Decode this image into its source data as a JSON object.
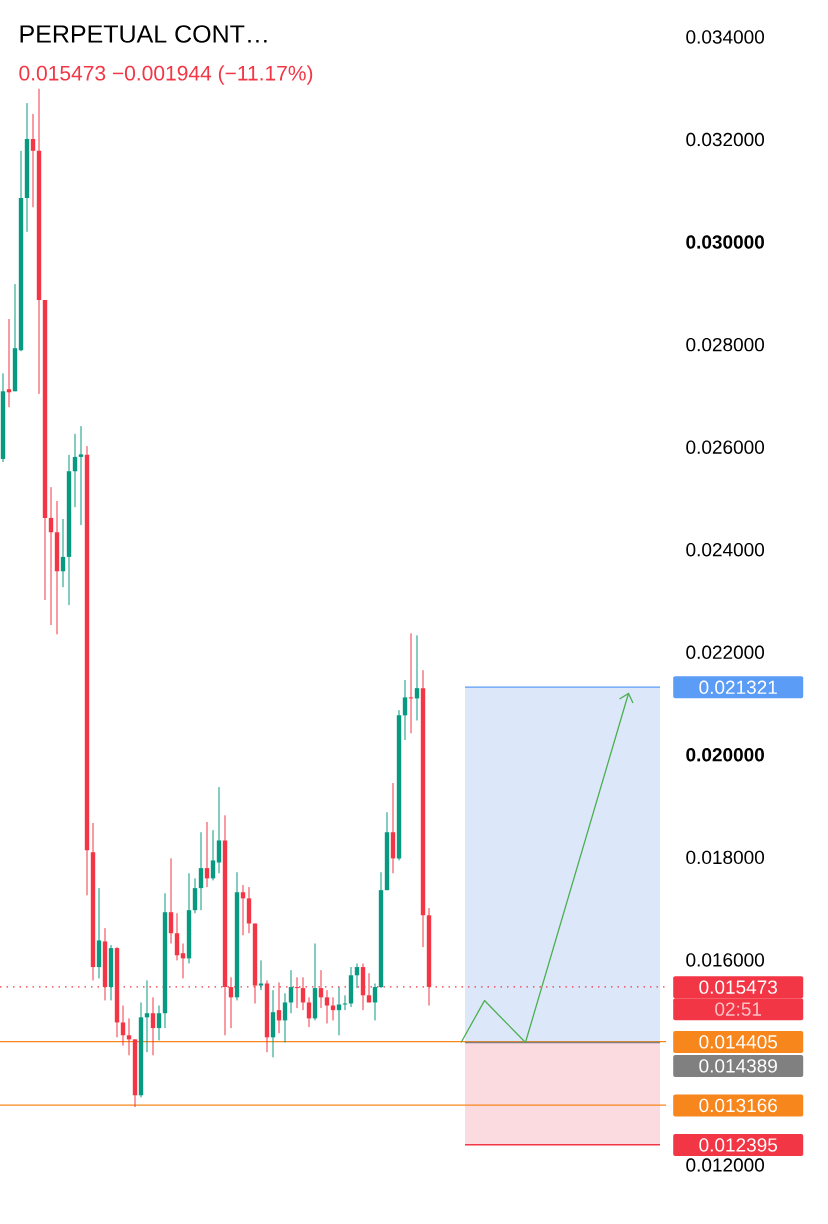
{
  "chart_data": {
    "type": "candlestick",
    "title": "PERPETUAL CONT…",
    "subtitle": "0.015473 −0.001944 (−11.17%)",
    "categories": [
      null,
      null,
      null,
      null,
      null,
      null,
      null,
      null,
      null,
      null,
      null,
      null,
      null,
      null,
      null,
      null,
      null,
      null,
      null,
      null,
      null,
      null,
      null,
      null,
      null,
      null,
      null,
      null,
      null,
      null,
      null,
      null,
      null,
      null,
      null,
      null,
      null,
      null,
      null,
      null,
      null,
      null,
      null,
      null,
      null,
      null,
      null,
      null,
      null,
      null,
      null,
      null,
      null,
      null,
      null,
      null,
      null,
      null,
      null,
      null,
      null,
      null,
      null,
      null,
      null,
      null,
      null,
      null,
      null,
      null,
      null,
      null,
      null,
      null,
      null,
      null,
      null,
      null,
      null,
      null,
      null,
      null,
      null,
      null,
      null,
      null,
      null,
      null,
      null,
      null,
      null,
      null,
      null,
      null,
      null,
      null,
      null,
      null,
      null,
      null,
      null,
      null,
      null,
      null,
      null,
      null,
      null,
      null,
      null,
      null,
      null
    ],
    "ohlc": [
      [
        0.02577,
        0.02744,
        0.02571,
        0.02709
      ],
      [
        0.02713,
        0.0285,
        0.02678,
        0.02707
      ],
      [
        0.02709,
        0.02918,
        0.02709,
        0.02793
      ],
      [
        0.02789,
        0.03178,
        0.02787,
        0.03086
      ],
      [
        0.03086,
        0.03271,
        0.0302,
        0.03201
      ],
      [
        0.03201,
        0.0325,
        0.03068,
        0.03178
      ],
      [
        0.03178,
        0.03299,
        0.02704,
        0.02887
      ],
      [
        0.02887,
        0.02887,
        0.02302,
        0.02462
      ],
      [
        0.02462,
        0.02522,
        0.02253,
        0.02434
      ],
      [
        0.02434,
        0.02495,
        0.02235,
        0.02358
      ],
      [
        0.02358,
        0.0246,
        0.02327,
        0.02386
      ],
      [
        0.02386,
        0.02585,
        0.02292,
        0.02553
      ],
      [
        0.02553,
        0.02626,
        0.02483,
        0.02581
      ],
      [
        0.02581,
        0.02641,
        0.02448,
        0.02586
      ],
      [
        0.02585,
        0.02602,
        0.01726,
        0.01814
      ],
      [
        0.0181,
        0.01867,
        0.0156,
        0.01586
      ],
      [
        0.01586,
        0.0174,
        0.01564,
        0.01638
      ],
      [
        0.01636,
        0.01662,
        0.01521,
        0.01547
      ],
      [
        0.01547,
        0.01629,
        0.01521,
        0.01623
      ],
      [
        0.01623,
        0.01625,
        0.01449,
        0.01478
      ],
      [
        0.01478,
        0.01511,
        0.01433,
        0.01453
      ],
      [
        0.01453,
        0.01486,
        0.01414,
        0.01445
      ],
      [
        0.01445,
        0.01445,
        0.01313,
        0.01336
      ],
      [
        0.01336,
        0.01517,
        0.01332,
        0.01488
      ],
      [
        0.01488,
        0.0156,
        0.0142,
        0.01496
      ],
      [
        0.01496,
        0.01527,
        0.01414,
        0.01467
      ],
      [
        0.01467,
        0.01511,
        0.01443,
        0.01496
      ],
      [
        0.01496,
        0.0173,
        0.01467,
        0.01693
      ],
      [
        0.01693,
        0.01798,
        0.01632,
        0.01652
      ],
      [
        0.01652,
        0.01691,
        0.01599,
        0.01609
      ],
      [
        0.01613,
        0.01632,
        0.01564,
        0.01603
      ],
      [
        0.01603,
        0.01769,
        0.01593,
        0.01697
      ],
      [
        0.01697,
        0.01759,
        0.01691,
        0.0174
      ],
      [
        0.0174,
        0.01849,
        0.01697,
        0.01779
      ],
      [
        0.01779,
        0.01869,
        0.01742,
        0.01759
      ],
      [
        0.01759,
        0.01853,
        0.01755,
        0.01794
      ],
      [
        0.0179,
        0.01937,
        0.01769,
        0.01833
      ],
      [
        0.01833,
        0.01882,
        0.01453,
        0.01547
      ],
      [
        0.01547,
        0.01566,
        0.01467,
        0.01527
      ],
      [
        0.01527,
        0.01771,
        0.01521,
        0.01732
      ],
      [
        0.01732,
        0.01746,
        0.01648,
        0.0172
      ],
      [
        0.0172,
        0.01742,
        0.01652,
        0.01671
      ],
      [
        0.01671,
        0.01671,
        0.01515,
        0.0155
      ],
      [
        0.0155,
        0.01599,
        0.01541,
        0.01554
      ],
      [
        0.01554,
        0.0156,
        0.0142,
        0.01449
      ],
      [
        0.01449,
        0.01541,
        0.0141,
        0.01498
      ],
      [
        0.01502,
        0.01556,
        0.01457,
        0.01482
      ],
      [
        0.01482,
        0.01535,
        0.01439,
        0.01517
      ],
      [
        0.01517,
        0.0158,
        0.01496,
        0.01547
      ],
      [
        0.01547,
        0.01566,
        0.01506,
        0.01545
      ],
      [
        0.01545,
        0.01566,
        0.01502,
        0.01517
      ],
      [
        0.01517,
        0.01527,
        0.01469,
        0.01486
      ],
      [
        0.01486,
        0.01632,
        0.01482,
        0.01545
      ],
      [
        0.01545,
        0.0158,
        0.01506,
        0.01527
      ],
      [
        0.01527,
        0.01541,
        0.01476,
        0.01511
      ],
      [
        0.01511,
        0.01527,
        0.01482,
        0.01502
      ],
      [
        0.01502,
        0.01547,
        0.01453,
        0.01513
      ],
      [
        0.01513,
        0.01531,
        0.01502,
        0.01515
      ],
      [
        0.01515,
        0.01586,
        0.01508,
        0.0157
      ],
      [
        0.0157,
        0.01593,
        0.01545,
        0.01586
      ],
      [
        0.01586,
        0.01593,
        0.01502,
        0.01531
      ],
      [
        0.01531,
        0.01574,
        0.01517,
        0.01517
      ],
      [
        0.01517,
        0.01554,
        0.01482,
        0.01547
      ],
      [
        0.01547,
        0.01771,
        0.01545,
        0.01736
      ],
      [
        0.01736,
        0.01888,
        0.01736,
        0.01849
      ],
      [
        0.01849,
        0.01945,
        0.01769,
        0.01798
      ],
      [
        0.01798,
        0.02087,
        0.01794,
        0.02077
      ],
      [
        0.02077,
        0.02146,
        0.02029,
        0.02112
      ],
      [
        0.02112,
        0.02237,
        0.02042,
        0.0211
      ],
      [
        0.0211,
        0.02233,
        0.02067,
        0.0213
      ],
      [
        0.0213,
        0.02165,
        0.01625,
        0.01687
      ],
      [
        0.01687,
        0.01701,
        0.01511,
        0.015473
      ],
      null,
      null,
      null,
      null,
      null,
      null,
      null,
      null,
      null,
      null,
      null,
      null,
      null,
      null,
      null,
      null,
      null,
      null,
      null,
      null,
      null,
      null,
      null,
      null,
      null,
      null,
      null,
      null,
      null,
      null,
      null,
      null,
      null,
      null,
      null,
      null,
      null,
      null,
      null
    ],
    "colors": [
      "#089981",
      "#f23645",
      "#089981",
      "#089981",
      "#089981",
      "#f23645",
      "#f23645",
      "#f23645",
      "#f23645",
      "#f23645",
      "#089981",
      "#089981",
      "#089981",
      "#089981",
      "#f23645",
      "#f23645",
      "#089981",
      "#f23645",
      "#089981",
      "#f23645",
      "#f23645",
      "#f23645",
      "#f23645",
      "#089981",
      "#089981",
      "#f23645",
      "#089981",
      "#089981",
      "#f23645",
      "#f23645",
      "#f23645",
      "#089981",
      "#089981",
      "#089981",
      "#f23645",
      "#089981",
      "#089981",
      "#f23645",
      "#f23645",
      "#089981",
      "#f23645",
      "#f23645",
      "#f23645",
      "#089981",
      "#f23645",
      "#089981",
      "#f23645",
      "#089981",
      "#089981",
      "#f23645",
      "#f23645",
      "#f23645",
      "#089981",
      "#f23645",
      "#f23645",
      "#f23645",
      "#089981",
      "#089981",
      "#089981",
      "#089981",
      "#f23645",
      "#f23645",
      "#089981",
      "#089981",
      "#089981",
      "#f23645",
      "#089981",
      "#089981",
      "#f23645",
      "#089981",
      "#f23645",
      "#f23645",
      null,
      null,
      null,
      null,
      null,
      null,
      null,
      null,
      null,
      null,
      null,
      null,
      null,
      null,
      null,
      null,
      null,
      null,
      null,
      null,
      null,
      null,
      null,
      null,
      null,
      null,
      null,
      null,
      null,
      null,
      null,
      null,
      null,
      null,
      null,
      null,
      null,
      null,
      null
    ],
    "ylim": [
      0.012,
      0.034
    ],
    "yticks": [
      {
        "value": 0.034,
        "label": "0.034000"
      },
      {
        "value": 0.032,
        "label": "0.032000"
      },
      {
        "value": 0.03,
        "label": "**0.030000**"
      },
      {
        "value": 0.028,
        "label": "0.028000"
      },
      {
        "value": 0.026,
        "label": "0.026000"
      },
      {
        "value": 0.024,
        "label": "0.024000"
      },
      {
        "value": 0.022,
        "label": "0.022000"
      },
      {
        "value": 0.02,
        "label": "**0.020000**"
      },
      {
        "value": 0.018,
        "label": "0.018000"
      },
      {
        "value": 0.016,
        "label": "0.016000"
      },
      {
        "value": 0.012,
        "label": "0.012000"
      }
    ],
    "tick_labels": "y",
    "bands": [
      {
        "axis": "y",
        "from": 0.014389,
        "to": 0.021321,
        "color": "#dce8f9"
      },
      {
        "axis": "y",
        "from": 0.012395,
        "to": 0.014389,
        "color": "#fcdbe0"
      }
    ],
    "ref_lines": [
      {
        "axis": "y",
        "value": 0.015473,
        "label": "0.015473",
        "color": "#f23645",
        "line_style": "dotted"
      },
      {
        "axis": "y",
        "value": 0.021321,
        "label": "0.021321",
        "color": "#5b9cf6",
        "line_style": "solid"
      },
      {
        "axis": "y",
        "value": 0.014405,
        "label": "0.014405",
        "color": "#f7861c",
        "line_style": "solid"
      },
      {
        "axis": "y",
        "value": 0.014389,
        "label": "0.014389",
        "color": "#808080",
        "line_style": "solid"
      },
      {
        "axis": "y",
        "value": 0.013166,
        "label": "0.013166",
        "color": "#f7861c",
        "line_style": "solid"
      },
      {
        "axis": "y",
        "value": 0.012395,
        "label": "0.012395",
        "color": "#f23645",
        "line_style": "solid"
      }
    ],
    "annotations": [
      "02:51"
    ]
  }
}
